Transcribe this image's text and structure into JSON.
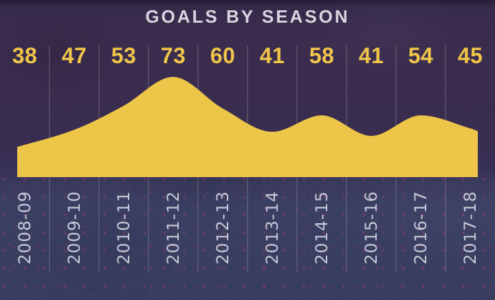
{
  "title": "GOALS BY SEASON",
  "chart_data": {
    "type": "area",
    "title": "GOALS BY SEASON",
    "categories": [
      "2008-09",
      "2009-10",
      "2010-11",
      "2011-12",
      "2012-13",
      "2013-14",
      "2014-15",
      "2015-16",
      "2016-17",
      "2017-18"
    ],
    "values": [
      38,
      47,
      53,
      73,
      60,
      41,
      58,
      41,
      54,
      45
    ],
    "xlabel": "",
    "ylabel": "",
    "legend": null,
    "gridlines": "vertical-between-categories",
    "value_labels_position": "top",
    "category_labels_rotation": -90,
    "colors": {
      "area": "#ecc549",
      "value_labels": "#f0c549",
      "title": "#d9d5de",
      "category_labels": "#c7c8d6",
      "gridline": "#b7aca6",
      "background_top": "#3b2c4e",
      "background_bottom": "#3a3f63"
    }
  }
}
